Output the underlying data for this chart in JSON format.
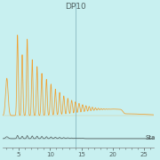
{
  "bg_color": "#c8f0f0",
  "orange_color": "#f0a030",
  "dark_color": "#404848",
  "vline_color": "#88b8c0",
  "vline_x": 14.0,
  "label_dp10": "DP10",
  "label_sta": "Sta",
  "xlim": [
    2.5,
    26.5
  ],
  "ylim_orange": [
    0.0,
    1.0
  ],
  "xticks": [
    5,
    10,
    15,
    20,
    25
  ],
  "title_fontsize": 6.5,
  "tick_fontsize": 5.0
}
